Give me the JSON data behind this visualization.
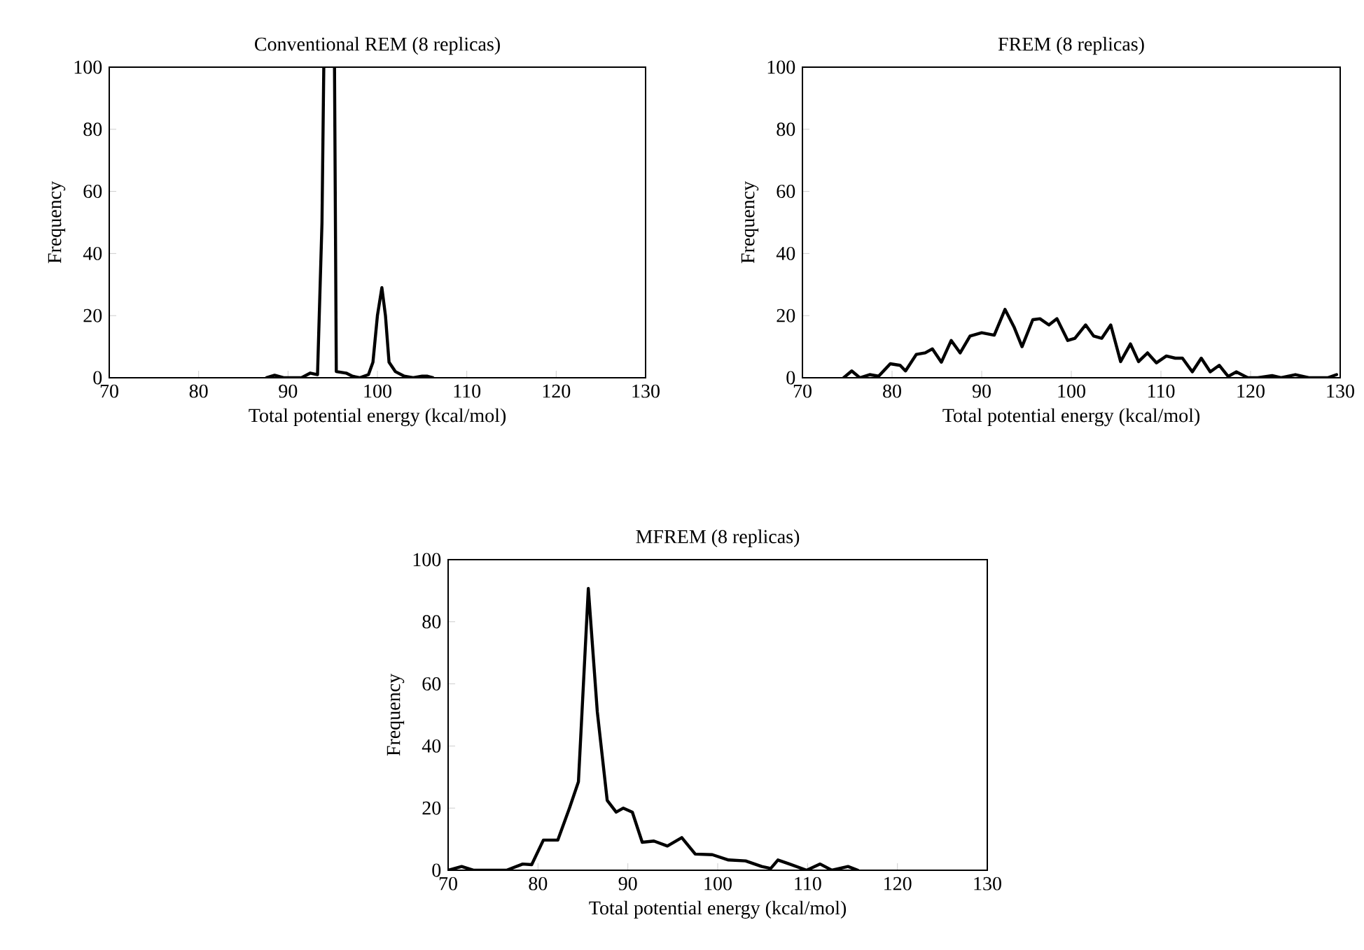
{
  "chart_data": [
    {
      "type": "line",
      "title": "Conventional REM (8 replicas)",
      "xlabel": "Total potential energy (kcal/mol)",
      "ylabel": "Frequency",
      "xlim": [
        70,
        130
      ],
      "ylim": [
        0,
        100
      ],
      "xticks": [
        70,
        80,
        90,
        100,
        110,
        120,
        130
      ],
      "yticks": [
        0,
        20,
        40,
        60,
        80,
        100
      ],
      "marker": "none",
      "line_style": "solid",
      "series": [
        {
          "color": "#000000",
          "x": [
            87.6,
            88.5,
            89.5,
            90.5,
            91.5,
            92.5,
            93.3,
            93.8,
            94.0,
            94.6,
            95.2,
            95.4,
            96.5,
            97.2,
            98.0,
            99.0,
            99.5,
            100.0,
            100.5,
            100.9,
            101.3,
            102.0,
            103.0,
            104.0,
            105.0,
            105.6,
            106.2
          ],
          "values": [
            0,
            0.8,
            0,
            0,
            0,
            1.5,
            1,
            50,
            100,
            null,
            100,
            2,
            1.5,
            0.5,
            0,
            1,
            5,
            20,
            29,
            20,
            5,
            2,
            0.5,
            0,
            0.5,
            0.5,
            0
          ]
        }
      ]
    },
    {
      "type": "line",
      "title": "FREM (8 replicas)",
      "xlabel": "Total potential energy (kcal/mol)",
      "ylabel": "Frequency",
      "xlim": [
        70,
        130
      ],
      "ylim": [
        0,
        100
      ],
      "xticks": [
        70,
        80,
        90,
        100,
        110,
        120,
        130
      ],
      "yticks": [
        0,
        20,
        40,
        60,
        80,
        100
      ],
      "marker": "none",
      "line_style": "solid",
      "series": [
        {
          "color": "#000000",
          "x": [
            74.6,
            75.5,
            76.4,
            77.5,
            78.5,
            79.8,
            80.9,
            81.5,
            82.7,
            83.7,
            84.5,
            85.5,
            86.6,
            87.6,
            88.7,
            90.0,
            91.4,
            92.6,
            93.6,
            94.5,
            95.7,
            96.5,
            97.5,
            98.4,
            99.6,
            100.4,
            101.6,
            102.5,
            103.4,
            104.4,
            105.5,
            106.6,
            107.5,
            108.5,
            109.5,
            110.6,
            111.6,
            112.4,
            113.5,
            114.5,
            115.5,
            116.5,
            117.5,
            118.4,
            119.7,
            120.8,
            122.4,
            123.4,
            125.0,
            126.5,
            128.6,
            129.6
          ],
          "values": [
            0,
            2.2,
            0,
            1,
            0.5,
            4.5,
            4,
            2.2,
            7.5,
            8,
            9.3,
            5,
            12,
            8,
            13.4,
            14.5,
            13.7,
            22,
            16.4,
            10,
            18.7,
            19,
            17,
            19,
            12,
            12.7,
            17,
            13.4,
            12.7,
            17,
            5.2,
            10.9,
            5.2,
            8,
            4.8,
            7,
            6.3,
            6.3,
            1.9,
            6.3,
            1.9,
            4,
            0.4,
            1.9,
            0,
            0,
            0.7,
            0,
            1,
            0,
            0,
            1
          ]
        }
      ]
    },
    {
      "type": "line",
      "title": "MFREM (8 replicas)",
      "xlabel": "Total potential energy (kcal/mol)",
      "ylabel": "Frequency",
      "xlim": [
        70,
        130
      ],
      "ylim": [
        0,
        100
      ],
      "xticks": [
        70,
        80,
        90,
        100,
        110,
        120,
        130
      ],
      "yticks": [
        0,
        20,
        40,
        60,
        80,
        100
      ],
      "marker": "none",
      "line_style": "solid",
      "series": [
        {
          "color": "#000000",
          "x": [
            70,
            71.5,
            72.8,
            76.5,
            78.3,
            79.3,
            80.6,
            82.2,
            83.5,
            84.5,
            85.6,
            86.6,
            87.7,
            88.7,
            89.5,
            90.5,
            91.6,
            92.9,
            94.4,
            96.0,
            97.5,
            99.4,
            101.2,
            103.1,
            104.9,
            105.9,
            106.7,
            108.0,
            109.9,
            111.4,
            112.7,
            114.5,
            115.6
          ],
          "values": [
            0,
            1.2,
            0,
            0,
            2,
            1.8,
            9.7,
            9.7,
            20,
            28.5,
            90.7,
            51,
            22.5,
            18.7,
            20,
            18.7,
            9,
            9.4,
            7.8,
            10.5,
            5.2,
            5,
            3.3,
            3,
            1.2,
            0.6,
            3.3,
            2,
            0,
            2,
            0,
            1.2,
            0
          ]
        }
      ]
    }
  ]
}
